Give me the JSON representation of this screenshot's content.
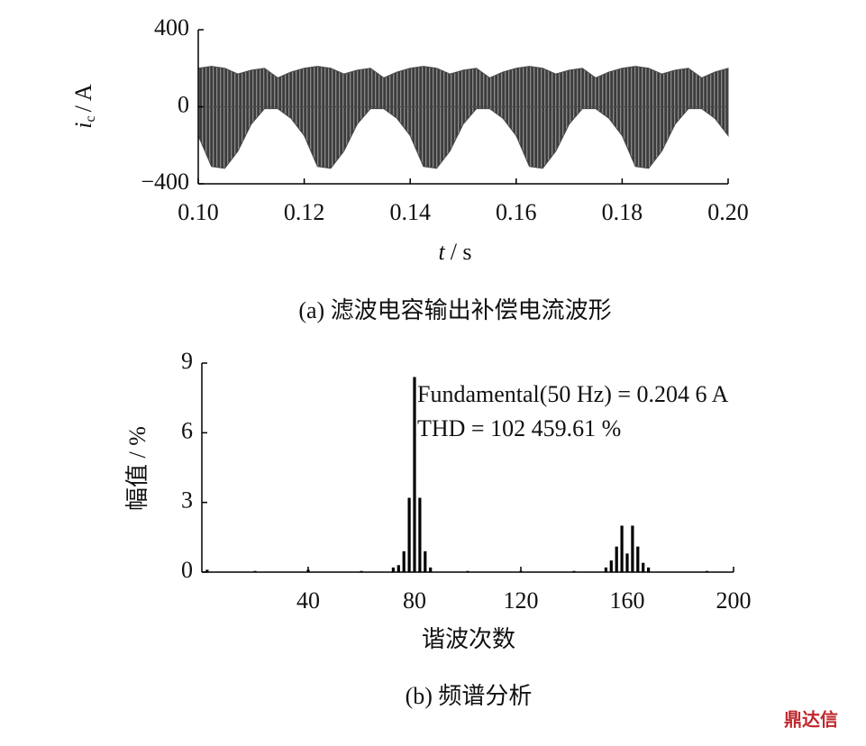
{
  "chart_data": [
    {
      "type": "area",
      "ylabel_parts": [
        "i",
        "c",
        "/ A"
      ],
      "xlabel_parts": [
        "t",
        "/ s"
      ],
      "caption": "(a) 滤波电容输出补偿电流波形",
      "x": [
        0.1,
        0.1025,
        0.105,
        0.1075,
        0.11,
        0.1125,
        0.115,
        0.1175,
        0.12,
        0.1225,
        0.125,
        0.1275,
        0.13,
        0.1325,
        0.135,
        0.1375,
        0.14,
        0.1425,
        0.145,
        0.1475,
        0.15,
        0.1525,
        0.155,
        0.1575,
        0.16,
        0.1625,
        0.165,
        0.1675,
        0.17,
        0.1725,
        0.175,
        0.1775,
        0.18,
        0.1825,
        0.185,
        0.1875,
        0.19,
        0.1925,
        0.195,
        0.1975,
        0.2
      ],
      "series": [
        {
          "color": "#4a4a4a",
          "values": [
            200,
            210,
            200,
            170,
            190,
            200,
            150,
            180,
            200,
            210,
            200,
            170,
            190,
            200,
            150,
            180,
            200,
            210,
            200,
            170,
            190,
            200,
            150,
            180,
            200,
            210,
            200,
            170,
            190,
            200,
            150,
            180,
            200,
            210,
            200,
            170,
            190,
            200,
            150,
            180,
            200
          ]
        },
        {
          "color": "#4a4a4a",
          "values": [
            -150,
            -310,
            -320,
            -230,
            -90,
            -10,
            -10,
            -60,
            -150,
            -310,
            -320,
            -230,
            -90,
            -10,
            -10,
            -60,
            -150,
            -310,
            -320,
            -230,
            -90,
            -10,
            -10,
            -60,
            -150,
            -310,
            -320,
            -230,
            -90,
            -10,
            -10,
            -60,
            -150,
            -310,
            -320,
            -230,
            -90,
            -10,
            -10,
            -60,
            -150
          ]
        }
      ],
      "xlim": [
        0.1,
        0.2
      ],
      "xticks": [
        {
          "value": 0.1,
          "label": "0.10"
        },
        0.12,
        0.14,
        0.16,
        0.18,
        {
          "value": 0.2,
          "label": "0.20"
        }
      ],
      "ylim": [
        -400,
        400
      ],
      "yticks": [
        {
          "value": -400,
          "label": "−400"
        },
        0,
        400
      ]
    },
    {
      "type": "bar",
      "ylabel": "幅值 / %",
      "xlabel": "谐波次数",
      "caption": "(b) 频谱分析",
      "annotations": [
        "Fundamental(50 Hz) = 0.204 6 A",
        "THD = 102 459.61 %"
      ],
      "color": "#000000",
      "x": [
        2,
        20,
        40,
        60,
        72,
        74,
        76,
        78,
        80,
        82,
        84,
        86,
        100,
        120,
        140,
        152,
        154,
        156,
        158,
        160,
        162,
        164,
        166,
        168,
        190
      ],
      "values": [
        0.1,
        0.05,
        0.1,
        0.05,
        0.2,
        0.3,
        0.9,
        3.2,
        8.4,
        3.2,
        0.9,
        0.2,
        0.05,
        0.05,
        0.05,
        0.2,
        0.5,
        1.1,
        2.0,
        0.8,
        2.0,
        1.1,
        0.4,
        0.2,
        0.05
      ],
      "xlim": [
        0,
        200
      ],
      "xticks": [
        40,
        80,
        120,
        160,
        200
      ],
      "ylim": [
        0,
        9
      ],
      "yticks": [
        0,
        3,
        6,
        9
      ]
    }
  ],
  "watermark": "鼎达信"
}
